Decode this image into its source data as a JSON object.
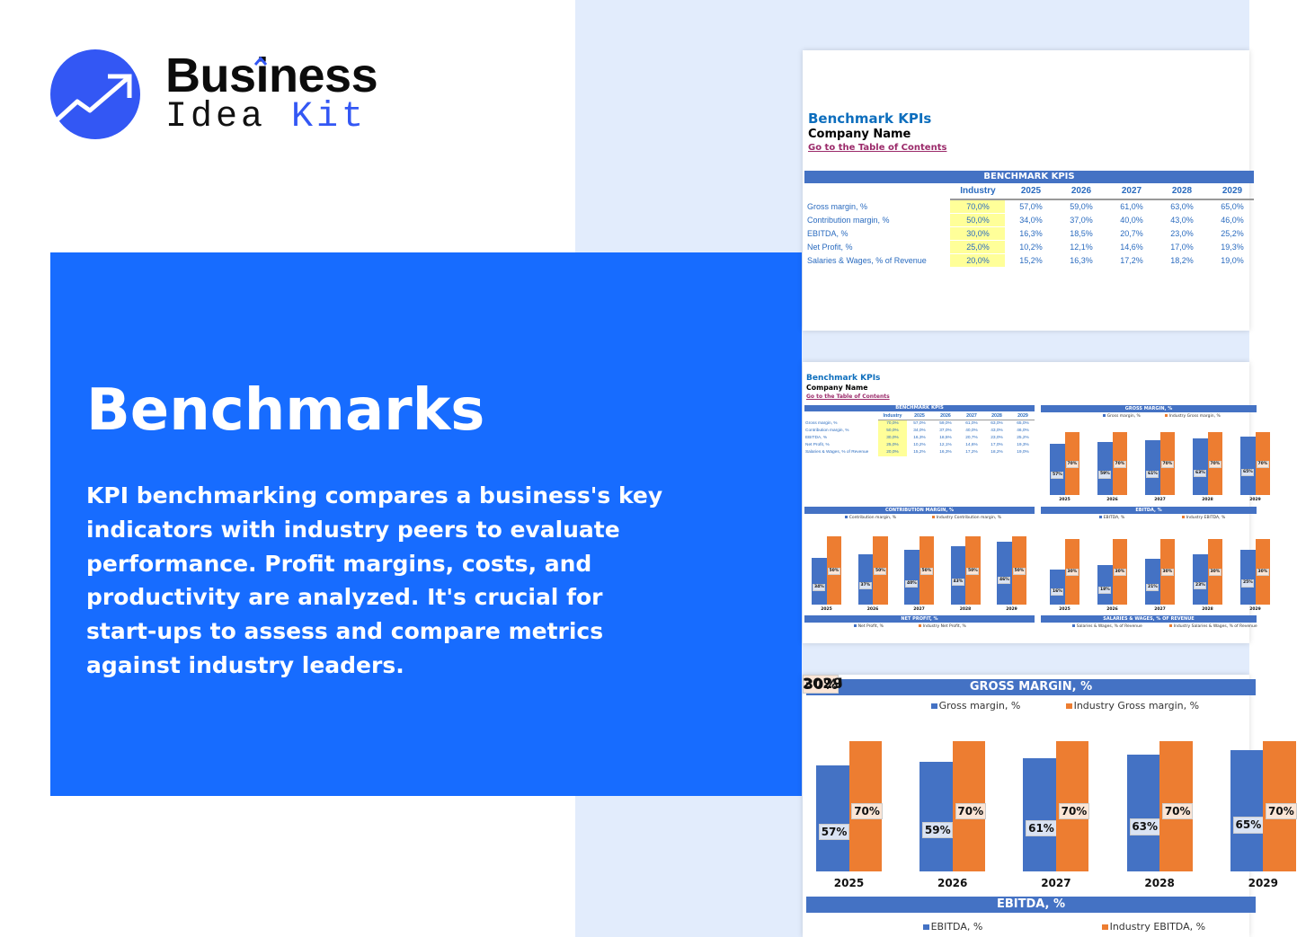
{
  "brand": {
    "word1": "Business",
    "word2_a": "Idea",
    "word2_b": "Kit",
    "logo_icon": "trending-up-arrow-icon",
    "accent": "#3357f4"
  },
  "hero": {
    "title": "Benchmarks",
    "description_lines": [
      "KPI benchmarking compares a business's key",
      "indicators with industry peers to evaluate",
      "performance. Profit margins, costs, and",
      "productivity are analyzed. It's crucial for",
      "start-ups to assess and compare metrics",
      "against industry leaders."
    ],
    "panel_color": "#176cff"
  },
  "sheet": {
    "title": "Benchmark KPIs",
    "company": "Company Name",
    "link": "Go to the Table of Contents",
    "table_title": "BENCHMARK KPIS",
    "columns": [
      "Industry",
      "2025",
      "2026",
      "2027",
      "2028",
      "2029"
    ],
    "rows": [
      {
        "label": "Gross margin, %",
        "values": [
          "70,0%",
          "57,0%",
          "59,0%",
          "61,0%",
          "63,0%",
          "65,0%"
        ]
      },
      {
        "label": "Contribution margin, %",
        "values": [
          "50,0%",
          "34,0%",
          "37,0%",
          "40,0%",
          "43,0%",
          "46,0%"
        ]
      },
      {
        "label": "EBITDA, %",
        "values": [
          "30,0%",
          "16,3%",
          "18,5%",
          "20,7%",
          "23,0%",
          "25,2%"
        ]
      },
      {
        "label": "Net Profit, %",
        "values": [
          "25,0%",
          "10,2%",
          "12,1%",
          "14,6%",
          "17,0%",
          "19,3%"
        ]
      },
      {
        "label": "Salaries & Wages, % of Revenue",
        "values": [
          "20,0%",
          "15,2%",
          "16,3%",
          "17,2%",
          "18,2%",
          "19,0%"
        ]
      }
    ],
    "colors": {
      "blue": "#4472c4",
      "orange": "#ed7d31",
      "industry_highlight": "#ffff99",
      "link": "#9b2a6a"
    }
  },
  "chart_data": [
    {
      "type": "bar",
      "title": "GROSS MARGIN, %",
      "categories": [
        "2025",
        "2026",
        "2027",
        "2028",
        "2029"
      ],
      "series": [
        {
          "name": "Gross margin, %",
          "values": [
            57,
            59,
            61,
            63,
            65
          ],
          "labels": [
            "57%",
            "59%",
            "61%",
            "63%",
            "65%"
          ]
        },
        {
          "name": "Industry Gross margin, %",
          "values": [
            70,
            70,
            70,
            70,
            70
          ],
          "labels": [
            "70%",
            "70%",
            "70%",
            "70%",
            "70%"
          ]
        }
      ],
      "legend": "top"
    },
    {
      "type": "bar",
      "title": "CONTRIBUTION MARGIN, %",
      "categories": [
        "2025",
        "2026",
        "2027",
        "2028",
        "2029"
      ],
      "series": [
        {
          "name": "Contribution margin, %",
          "values": [
            34,
            37,
            40,
            43,
            46
          ],
          "labels": [
            "34%",
            "37%",
            "40%",
            "43%",
            "46%"
          ]
        },
        {
          "name": "Industry Contribution margin, %",
          "values": [
            50,
            50,
            50,
            50,
            50
          ],
          "labels": [
            "50%",
            "50%",
            "50%",
            "50%",
            "50%"
          ]
        }
      ],
      "legend": "top"
    },
    {
      "type": "bar",
      "title": "EBITDA, %",
      "categories": [
        "2025",
        "2026",
        "2027",
        "2028",
        "2029"
      ],
      "series": [
        {
          "name": "EBITDA, %",
          "values": [
            16,
            18,
            21,
            23,
            25
          ],
          "labels": [
            "16%",
            "18%",
            "21%",
            "23%",
            "25%"
          ]
        },
        {
          "name": "Industry EBITDA, %",
          "values": [
            30,
            30,
            30,
            30,
            30
          ],
          "labels": [
            "30%",
            "30%",
            "30%",
            "30%",
            "30%"
          ]
        }
      ],
      "legend": "top"
    },
    {
      "type": "bar",
      "title": "NET PROFIT, %",
      "series": [
        {
          "name": "Net Profit, %"
        },
        {
          "name": "Industry Net Profit, %"
        }
      ],
      "legend": "top"
    },
    {
      "type": "bar",
      "title": "SALARIES & WAGES, % OF REVENUE",
      "series": [
        {
          "name": "Salaries & Wages, % of Revenue"
        },
        {
          "name": "Industry Salaries & Wages, % of Revenue"
        }
      ],
      "legend": "top"
    }
  ]
}
